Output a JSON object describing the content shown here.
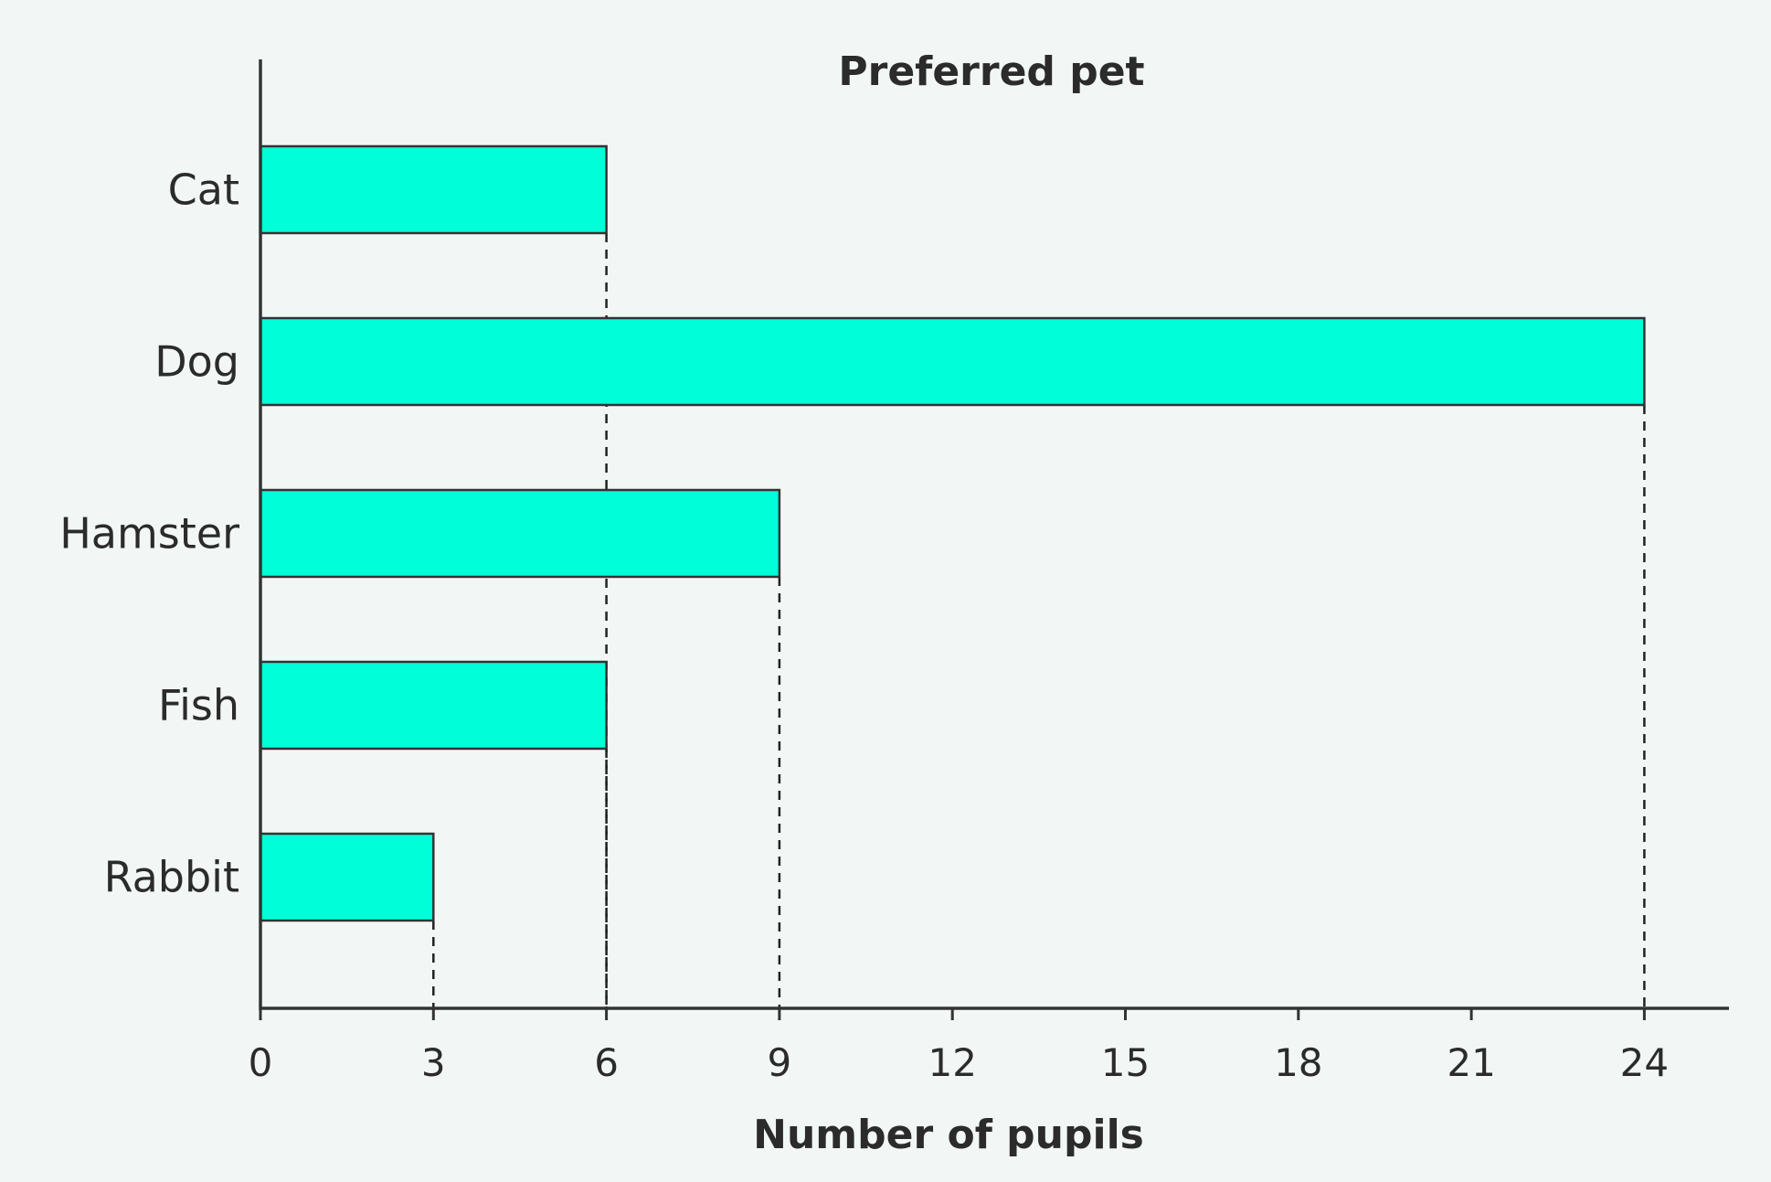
{
  "chart_data": {
    "type": "bar",
    "orientation": "horizontal",
    "title": "Preferred pet",
    "xlabel": "Number of pupils",
    "ylabel": "",
    "categories": [
      "Cat",
      "Dog",
      "Hamster",
      "Fish",
      "Rabbit"
    ],
    "values": [
      6,
      24,
      9,
      6,
      3
    ],
    "xlim": [
      0,
      25.5
    ],
    "xticks": [
      0,
      3,
      6,
      9,
      12,
      15,
      18,
      21,
      24
    ],
    "xtick_labels": [
      "0",
      "3",
      "6",
      "9",
      "12",
      "15",
      "18",
      "21",
      "24"
    ],
    "grid": false,
    "dashed_guides": true,
    "colors": {
      "bar": "#00ffd8",
      "axis": "#333333",
      "background": "#f2f7f6"
    }
  }
}
